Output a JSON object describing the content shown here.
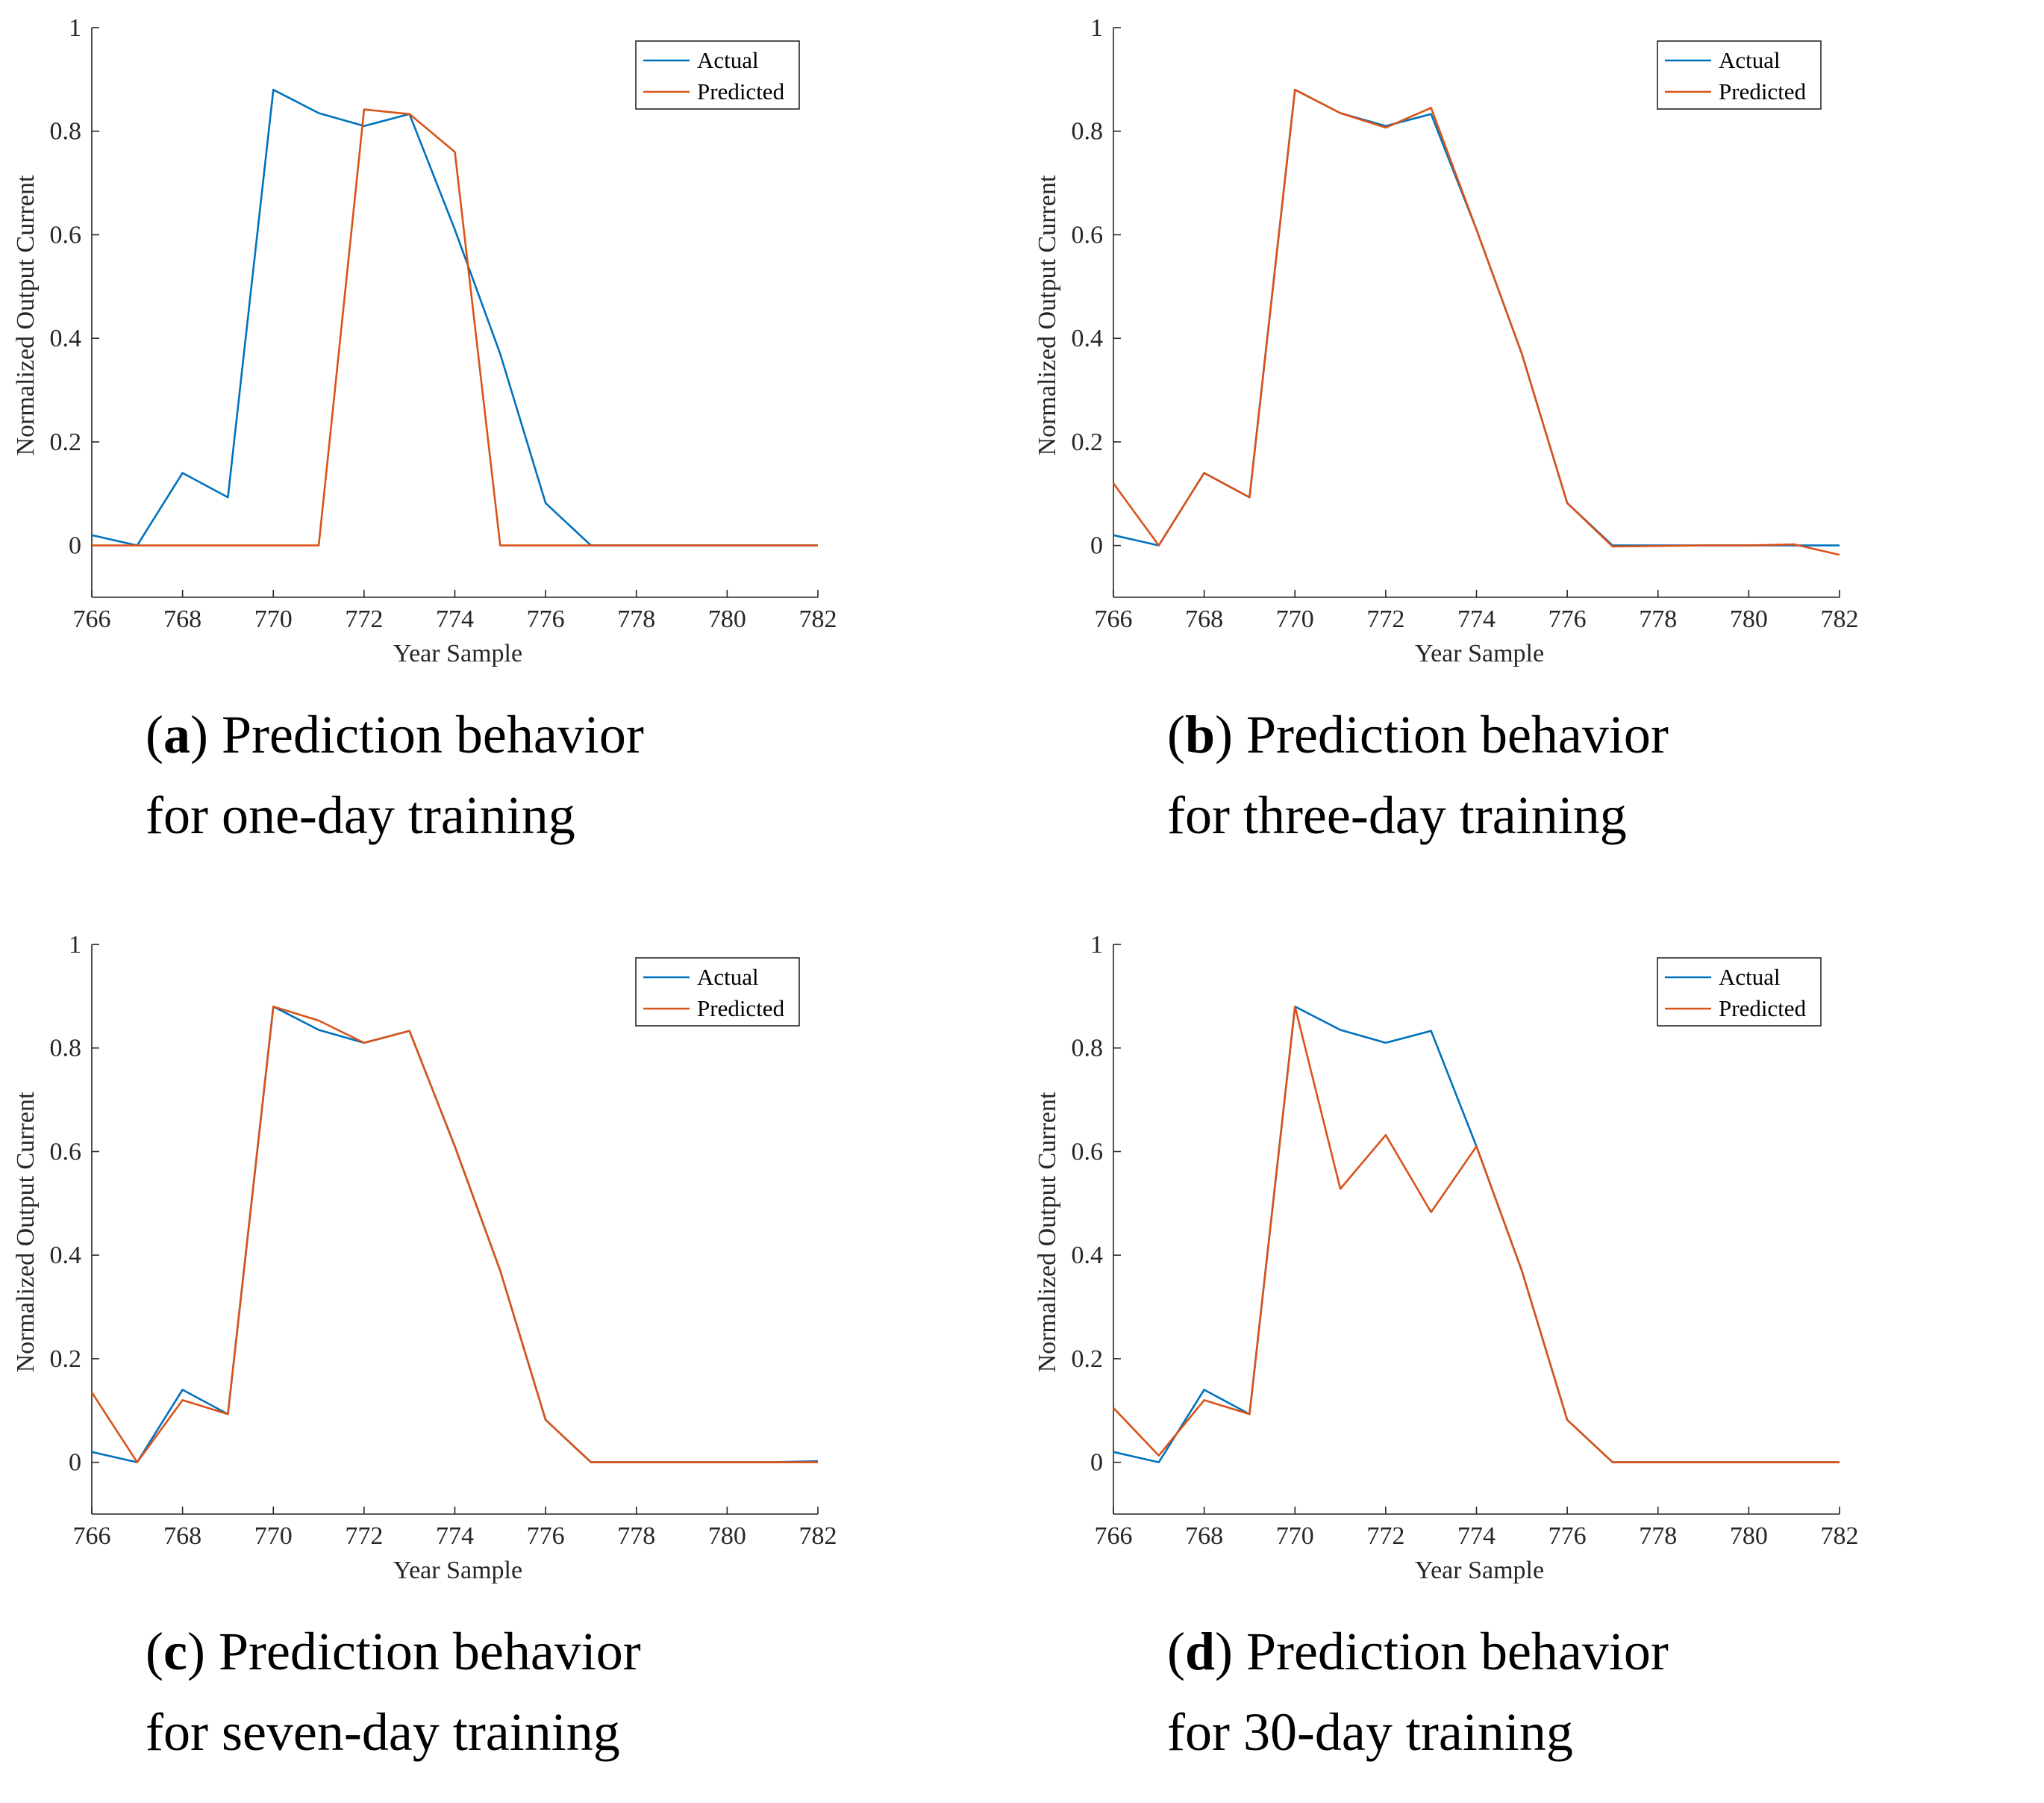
{
  "colors": {
    "actual": "#0072BD",
    "predicted": "#D95319",
    "axis": "#262626"
  },
  "chart_data": [
    {
      "type": "line",
      "panel_letter": "a",
      "caption_line1": " Prediction behavior",
      "caption_line2": "for one-day training",
      "xlabel": "Year Sample",
      "ylabel": "Normalized Output Current",
      "xlim": [
        766,
        782
      ],
      "ylim": [
        -0.1,
        1
      ],
      "xticks": [
        766,
        768,
        770,
        772,
        774,
        776,
        778,
        780,
        782
      ],
      "yticks": [
        0,
        0.2,
        0.4,
        0.6,
        0.8,
        1
      ],
      "ytick_labels": [
        "0",
        "0.2",
        "0.4",
        "0.6",
        "0.8",
        "1"
      ],
      "legend_position": "top-right",
      "x": [
        766,
        767,
        768,
        769,
        770,
        771,
        772,
        773,
        774,
        775,
        776,
        777,
        778,
        779,
        780,
        781,
        782
      ],
      "series": [
        {
          "name": "Actual",
          "color": "#0072BD",
          "values": [
            0.02,
            0.0,
            0.14,
            0.093,
            0.88,
            0.835,
            0.81,
            0.833,
            0.61,
            0.37,
            0.082,
            0.0,
            0.0,
            0.0,
            0.0,
            0.0,
            0.0
          ]
        },
        {
          "name": "Predicted",
          "color": "#D95319",
          "values": [
            0.0,
            0.0,
            0.0,
            0.0,
            0.0,
            0.0,
            0.842,
            0.833,
            0.76,
            0.0,
            0.0,
            0.0,
            0.0,
            0.0,
            0.0,
            0.0,
            0.0
          ]
        }
      ]
    },
    {
      "type": "line",
      "panel_letter": "b",
      "caption_line1": " Prediction behavior",
      "caption_line2": "for three-day training",
      "xlabel": "Year Sample",
      "ylabel": "Normalized Output Current",
      "xlim": [
        766,
        782
      ],
      "ylim": [
        -0.1,
        1
      ],
      "xticks": [
        766,
        768,
        770,
        772,
        774,
        776,
        778,
        780,
        782
      ],
      "yticks": [
        0,
        0.2,
        0.4,
        0.6,
        0.8,
        1
      ],
      "ytick_labels": [
        "0",
        "0.2",
        "0.4",
        "0.6",
        "0.8",
        "1"
      ],
      "legend_position": "top-right",
      "x": [
        766,
        767,
        768,
        769,
        770,
        771,
        772,
        773,
        774,
        775,
        776,
        777,
        778,
        779,
        780,
        781,
        782
      ],
      "series": [
        {
          "name": "Actual",
          "color": "#0072BD",
          "values": [
            0.02,
            0.0,
            0.14,
            0.093,
            0.88,
            0.835,
            0.81,
            0.833,
            0.61,
            0.37,
            0.082,
            0.0,
            0.0,
            0.0,
            0.0,
            0.0,
            0.0
          ]
        },
        {
          "name": "Predicted",
          "color": "#D95319",
          "values": [
            0.12,
            0.0,
            0.14,
            0.093,
            0.88,
            0.835,
            0.807,
            0.845,
            0.61,
            0.37,
            0.082,
            -0.002,
            -0.001,
            0.0,
            0.0,
            0.002,
            -0.018
          ]
        }
      ]
    },
    {
      "type": "line",
      "panel_letter": "c",
      "caption_line1": " Prediction behavior",
      "caption_line2": "for seven-day training",
      "xlabel": "Year Sample",
      "ylabel": "Normalized Output Current",
      "xlim": [
        766,
        782
      ],
      "ylim": [
        -0.1,
        1
      ],
      "xticks": [
        766,
        768,
        770,
        772,
        774,
        776,
        778,
        780,
        782
      ],
      "yticks": [
        0,
        0.2,
        0.4,
        0.6,
        0.8,
        1
      ],
      "ytick_labels": [
        "0",
        "0.2",
        "0.4",
        "0.6",
        "0.8",
        "1"
      ],
      "legend_position": "top-right",
      "x": [
        766,
        767,
        768,
        769,
        770,
        771,
        772,
        773,
        774,
        775,
        776,
        777,
        778,
        779,
        780,
        781,
        782
      ],
      "series": [
        {
          "name": "Actual",
          "color": "#0072BD",
          "values": [
            0.02,
            0.0,
            0.14,
            0.093,
            0.88,
            0.835,
            0.81,
            0.833,
            0.61,
            0.37,
            0.082,
            0.0,
            0.0,
            0.0,
            0.0,
            0.0,
            0.002
          ]
        },
        {
          "name": "Predicted",
          "color": "#D95319",
          "values": [
            0.135,
            0.0,
            0.12,
            0.093,
            0.88,
            0.853,
            0.81,
            0.833,
            0.61,
            0.37,
            0.082,
            0.0,
            0.0,
            0.0,
            0.0,
            0.0,
            0.0
          ]
        }
      ]
    },
    {
      "type": "line",
      "panel_letter": "d",
      "caption_line1": " Prediction behavior",
      "caption_line2": "for 30-day training",
      "xlabel": "Year Sample",
      "ylabel": "Normalized Output Current",
      "xlim": [
        766,
        782
      ],
      "ylim": [
        -0.1,
        1
      ],
      "xticks": [
        766,
        768,
        770,
        772,
        774,
        776,
        778,
        780,
        782
      ],
      "yticks": [
        0,
        0.2,
        0.4,
        0.6,
        0.8,
        1
      ],
      "ytick_labels": [
        "0",
        "0.2",
        "0.4",
        "0.6",
        "0.8",
        "1"
      ],
      "legend_position": "top-right",
      "x": [
        766,
        767,
        768,
        769,
        770,
        771,
        772,
        773,
        774,
        775,
        776,
        777,
        778,
        779,
        780,
        781,
        782
      ],
      "series": [
        {
          "name": "Actual",
          "color": "#0072BD",
          "values": [
            0.02,
            0.0,
            0.14,
            0.093,
            0.88,
            0.835,
            0.81,
            0.833,
            0.61,
            0.37,
            0.082,
            0.0,
            0.0,
            0.0,
            0.0,
            0.0,
            0.0
          ]
        },
        {
          "name": "Predicted",
          "color": "#D95319",
          "values": [
            0.105,
            0.013,
            0.12,
            0.093,
            0.88,
            0.528,
            0.632,
            0.483,
            0.61,
            0.37,
            0.082,
            0.0,
            0.0,
            0.0,
            0.0,
            0.0,
            0.0
          ]
        }
      ]
    }
  ]
}
